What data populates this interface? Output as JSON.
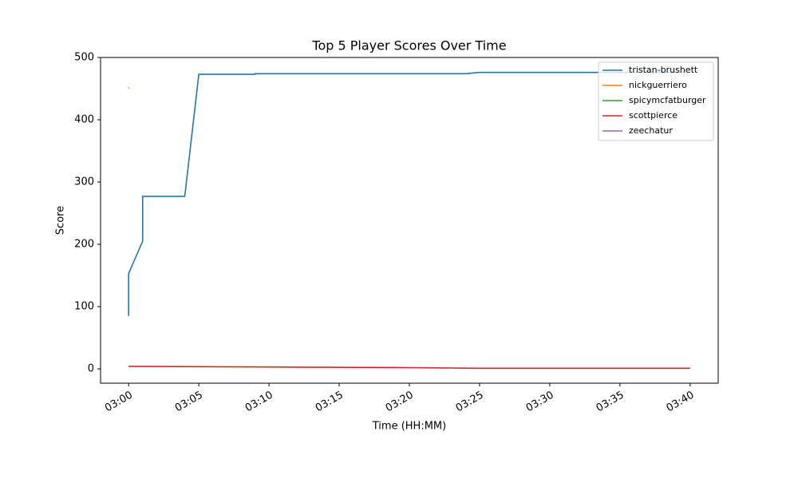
{
  "chart_data": {
    "type": "line",
    "title": "Top 5 Player Scores Over Time",
    "x_label": "Time (HH:MM)",
    "y_label": "Score",
    "xlim": [
      "02:58",
      "03:42"
    ],
    "xticks": [
      "03:00",
      "03:05",
      "03:10",
      "03:15",
      "03:20",
      "03:25",
      "03:30",
      "03:35",
      "03:40"
    ],
    "ylim": [
      -23,
      500
    ],
    "yticks": [
      0,
      100,
      200,
      300,
      400,
      500
    ],
    "legend": "upper right",
    "series": [
      {
        "name": "tristan-brushett",
        "color": "#1f77b4",
        "x": [
          "03:00",
          "03:00",
          "03:00",
          "03:01",
          "03:01",
          "03:04",
          "03:05",
          "03:09",
          "03:09",
          "03:24",
          "03:25",
          "03:40"
        ],
        "values": [
          85,
          153,
          153,
          205,
          277,
          277,
          473,
          473,
          474,
          474,
          476,
          476
        ]
      },
      {
        "name": "nickguerriero",
        "color": "#ff7f0e",
        "x": [
          "03:00",
          "03:00"
        ],
        "values": [
          450,
          452
        ]
      },
      {
        "name": "spicymcfatburger",
        "color": "#2ca02c",
        "x": [
          "03:00"
        ],
        "values": [
          3
        ]
      },
      {
        "name": "scottpierce",
        "color": "#d62728",
        "x": [
          "03:00",
          "03:10",
          "03:20",
          "03:25",
          "03:40"
        ],
        "values": [
          4,
          3,
          2,
          1,
          1
        ]
      },
      {
        "name": "zeechatur",
        "color": "#9467bd",
        "x": [
          "03:00"
        ],
        "values": [
          4
        ]
      }
    ]
  }
}
